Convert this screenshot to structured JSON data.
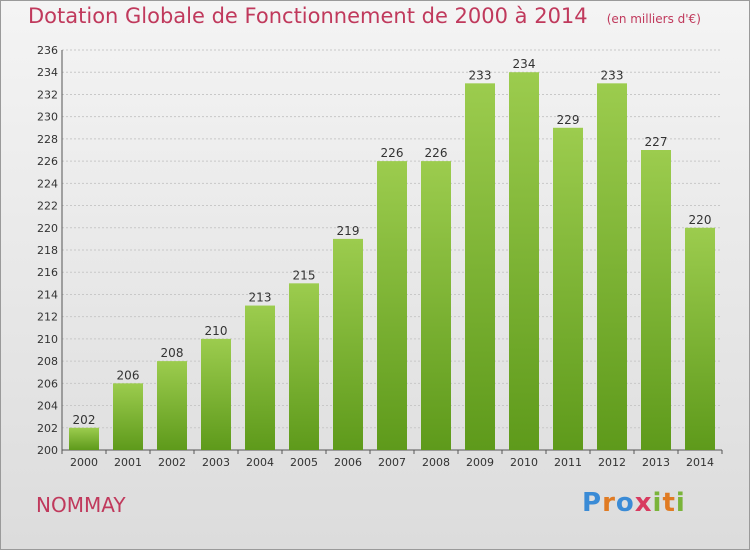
{
  "header": {
    "title": "Dotation Globale de Fonctionnement de 2000 à 2014",
    "subtitle": "(en milliers d'€)"
  },
  "commune": "NOMMAY",
  "logo": "Proxiti",
  "colors": {
    "bar_light": "#9ccc4e",
    "bar_dark": "#5e9a1b",
    "title": "#c0395c",
    "grid": "#c8c8c8",
    "text": "#333333"
  },
  "chart_data": {
    "type": "bar",
    "title": "Dotation Globale de Fonctionnement de 2000 à 2014",
    "subtitle": "(en milliers d'€)",
    "categories": [
      "2000",
      "2001",
      "2002",
      "2003",
      "2004",
      "2005",
      "2006",
      "2007",
      "2008",
      "2009",
      "2010",
      "2011",
      "2012",
      "2013",
      "2014"
    ],
    "values": [
      202,
      206,
      208,
      210,
      213,
      215,
      219,
      226,
      226,
      233,
      234,
      229,
      233,
      227,
      220
    ],
    "ylim": [
      200,
      236
    ],
    "yticks": [
      200,
      202,
      204,
      206,
      208,
      210,
      212,
      214,
      216,
      218,
      220,
      222,
      224,
      226,
      228,
      230,
      232,
      234,
      236
    ],
    "grid": true,
    "data_labels": true
  }
}
